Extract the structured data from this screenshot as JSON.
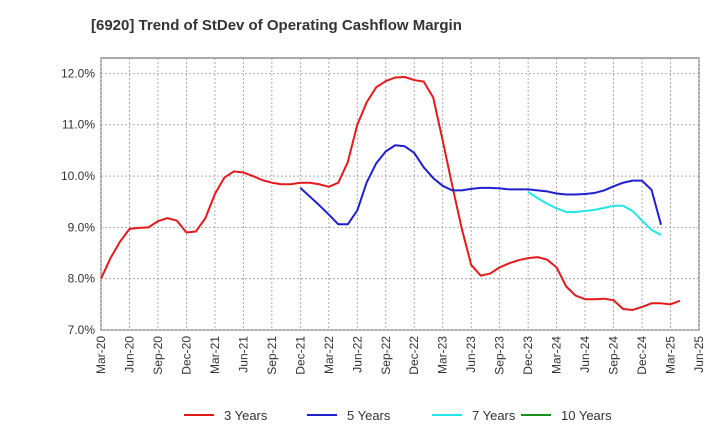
{
  "chart_data": {
    "type": "line",
    "title": "[6920]  Trend of StDev of Operating Cashflow Margin",
    "xlabel": "",
    "ylabel": "",
    "ylim": [
      7.0,
      12.3
    ],
    "y_ticks": [
      "7.0%",
      "8.0%",
      "9.0%",
      "10.0%",
      "11.0%",
      "12.0%"
    ],
    "y_tick_values": [
      7.0,
      8.0,
      9.0,
      10.0,
      11.0,
      12.0
    ],
    "x_ticks": [
      "Mar-20",
      "Jun-20",
      "Sep-20",
      "Dec-20",
      "Mar-21",
      "Jun-21",
      "Sep-21",
      "Dec-21",
      "Mar-22",
      "Jun-22",
      "Sep-22",
      "Dec-22",
      "Mar-23",
      "Jun-23",
      "Sep-23",
      "Dec-23",
      "Mar-24",
      "Jun-24",
      "Sep-24",
      "Dec-24",
      "Mar-25",
      "Jun-25"
    ],
    "grid": true,
    "legend_placement": "bottom",
    "series": [
      {
        "name": "3 Years",
        "color": "#e31a1c",
        "x_start": "Mar-20",
        "values": [
          8.0,
          8.4,
          8.72,
          8.97,
          8.99,
          9.0,
          9.12,
          9.18,
          9.13,
          8.9,
          8.92,
          9.18,
          9.65,
          9.97,
          10.09,
          10.07,
          10.0,
          9.92,
          9.87,
          9.84,
          9.84,
          9.87,
          9.87,
          9.84,
          9.79,
          9.87,
          10.27,
          11.0,
          11.44,
          11.73,
          11.85,
          11.92,
          11.93,
          11.87,
          11.84,
          11.53,
          10.69,
          9.82,
          8.98,
          8.27,
          8.06,
          8.1,
          8.22,
          8.3,
          8.36,
          8.4,
          8.42,
          8.37,
          8.22,
          7.85,
          7.67,
          7.6,
          7.6,
          7.61,
          7.58,
          7.41,
          7.39,
          7.45,
          7.52,
          7.52,
          7.5,
          7.57
        ]
      },
      {
        "name": "5 Years",
        "color": "#1f1fd0",
        "x_start": "Dec-21",
        "values": [
          9.77,
          9.6,
          9.43,
          9.25,
          9.06,
          9.06,
          9.33,
          9.88,
          10.25,
          10.48,
          10.6,
          10.58,
          10.45,
          10.17,
          9.96,
          9.81,
          9.72,
          9.72,
          9.75,
          9.77,
          9.77,
          9.76,
          9.74,
          9.74,
          9.74,
          9.72,
          9.7,
          9.66,
          9.64,
          9.64,
          9.65,
          9.67,
          9.72,
          9.8,
          9.87,
          9.91,
          9.91,
          9.73,
          9.05
        ]
      },
      {
        "name": "7 Years",
        "color": "#22e6e6",
        "x_start": "Dec-23",
        "values": [
          9.69,
          9.57,
          9.46,
          9.37,
          9.3,
          9.3,
          9.32,
          9.34,
          9.38,
          9.42,
          9.42,
          9.32,
          9.13,
          8.95,
          8.85
        ]
      },
      {
        "name": "10 Years",
        "color": "#1a8f1a",
        "x_start": "Mar-25",
        "values": []
      }
    ]
  }
}
